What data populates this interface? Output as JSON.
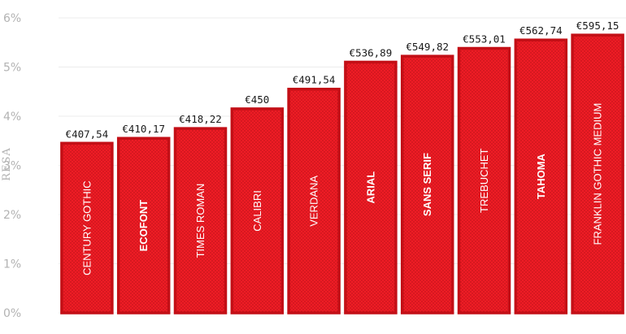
{
  "chart_data": {
    "type": "bar",
    "ylabel": "RESA",
    "yticks": [
      "0%",
      "1%",
      "2%",
      "3%",
      "4%",
      "5%",
      "6%"
    ],
    "ylim": [
      0,
      6
    ],
    "grid": true,
    "colors": {
      "bar_fill": "#ee1c25",
      "bar_border": "#c30f16",
      "dots": "#b50f16"
    },
    "categories": [
      "CENTURY GOTHIC",
      "ECOFONT",
      "TIMES ROMAN",
      "CALIBRI",
      "VERDANA",
      "ARIAL",
      "SANS SERIF",
      "TREBUCHET",
      "TAHOMA",
      "FRANKLIN GOTHIC MEDIUM"
    ],
    "values": [
      3.45,
      3.55,
      3.75,
      4.15,
      4.55,
      5.1,
      5.22,
      5.38,
      5.55,
      5.65
    ],
    "data_labels": [
      "€407,54",
      "€410,17",
      "€418,22",
      "€450",
      "€491,54",
      "€536,89",
      "€549,82",
      "€553,01",
      "€562,74",
      "€595,15"
    ],
    "category_label_bold": [
      false,
      true,
      false,
      false,
      false,
      true,
      true,
      false,
      true,
      false
    ]
  }
}
